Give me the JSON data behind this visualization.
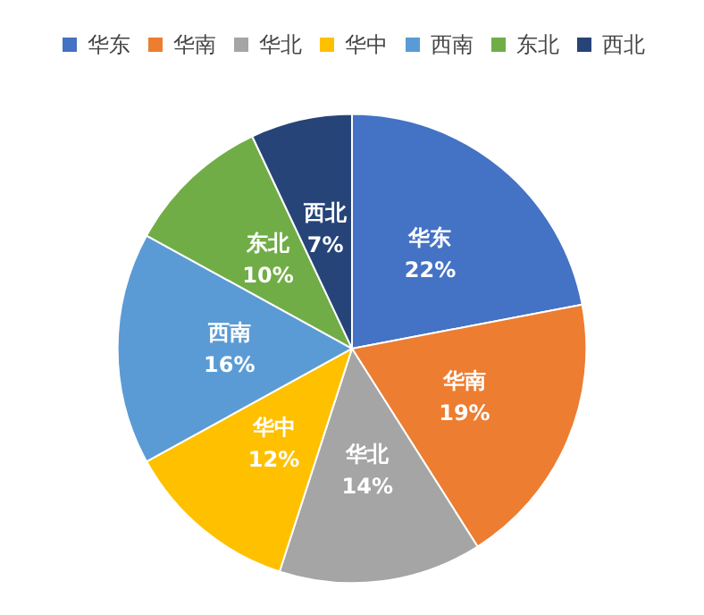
{
  "chart_data": {
    "type": "pie",
    "categories": [
      "华东",
      "华南",
      "华北",
      "华中",
      "西南",
      "东北",
      "西北"
    ],
    "values": [
      22,
      19,
      14,
      12,
      16,
      10,
      7
    ],
    "value_labels": [
      "22%",
      "19%",
      "14%",
      "12%",
      "16%",
      "10%",
      "7%"
    ],
    "colors": [
      "#4472c4",
      "#ed7d31",
      "#a5a5a5",
      "#ffc000",
      "#5b9bd5",
      "#70ad47",
      "#264478"
    ],
    "legend": "top"
  }
}
